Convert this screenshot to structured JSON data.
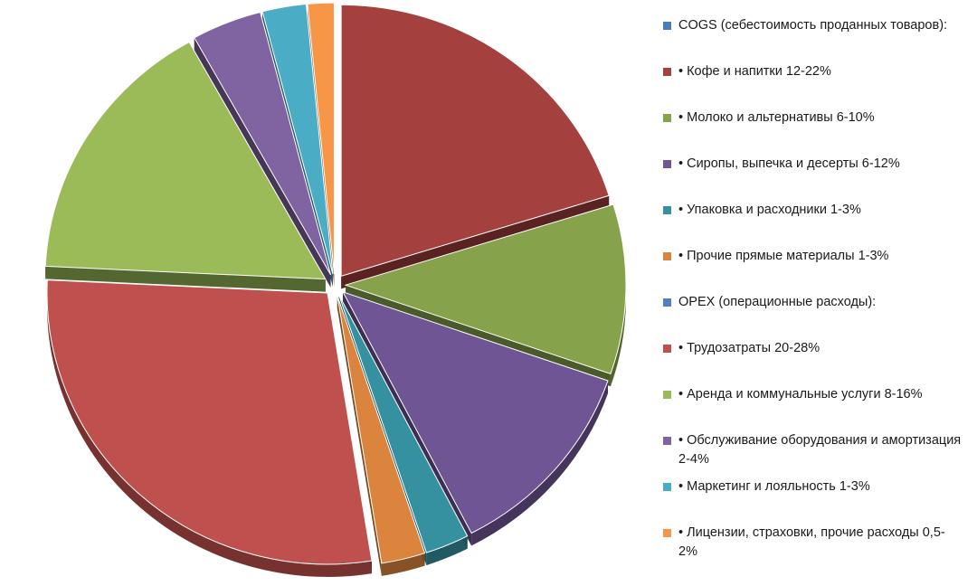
{
  "chart_data": {
    "type": "pie",
    "style": "3d-exploded",
    "legend_position": "right",
    "slices": [
      {
        "label": "COGS (себестоимость проданных товаров):",
        "value": 0,
        "color": "#4A7EBB"
      },
      {
        "label": "• Кофе и напитки 12-22%",
        "value": 20,
        "color": "#A4403D"
      },
      {
        "label": "• Молоко и альтернативы 6-10%",
        "value": 10,
        "color": "#86A34B"
      },
      {
        "label": "• Сиропы, выпечка и десерты 6-12%",
        "value": 12,
        "color": "#6F5594"
      },
      {
        "label": "• Упаковка и расходники 1-3%",
        "value": 2.5,
        "color": "#35919F"
      },
      {
        "label": "• Прочие прямые материалы 1-3%",
        "value": 2.5,
        "color": "#DB843D"
      },
      {
        "label": "OPEX (операционные расходы):",
        "value": 0,
        "color": "#4F81BD"
      },
      {
        "label": "• Трудозатраты 20-28%",
        "value": 28,
        "color": "#C0504D"
      },
      {
        "label": "• Аренда и коммунальные услуги 8-16%",
        "value": 16,
        "color": "#9BBB59"
      },
      {
        "label": "• Обслуживание оборудования и амортизация 2-4%",
        "value": 4,
        "color": "#8064A2"
      },
      {
        "label": "• Маркетинг и лояльность 1-3%",
        "value": 2.5,
        "color": "#4BACC6"
      },
      {
        "label": "• Лицензии, страховки, прочие расходы 0,5-2%",
        "value": 1.5,
        "color": "#F79646"
      }
    ]
  }
}
